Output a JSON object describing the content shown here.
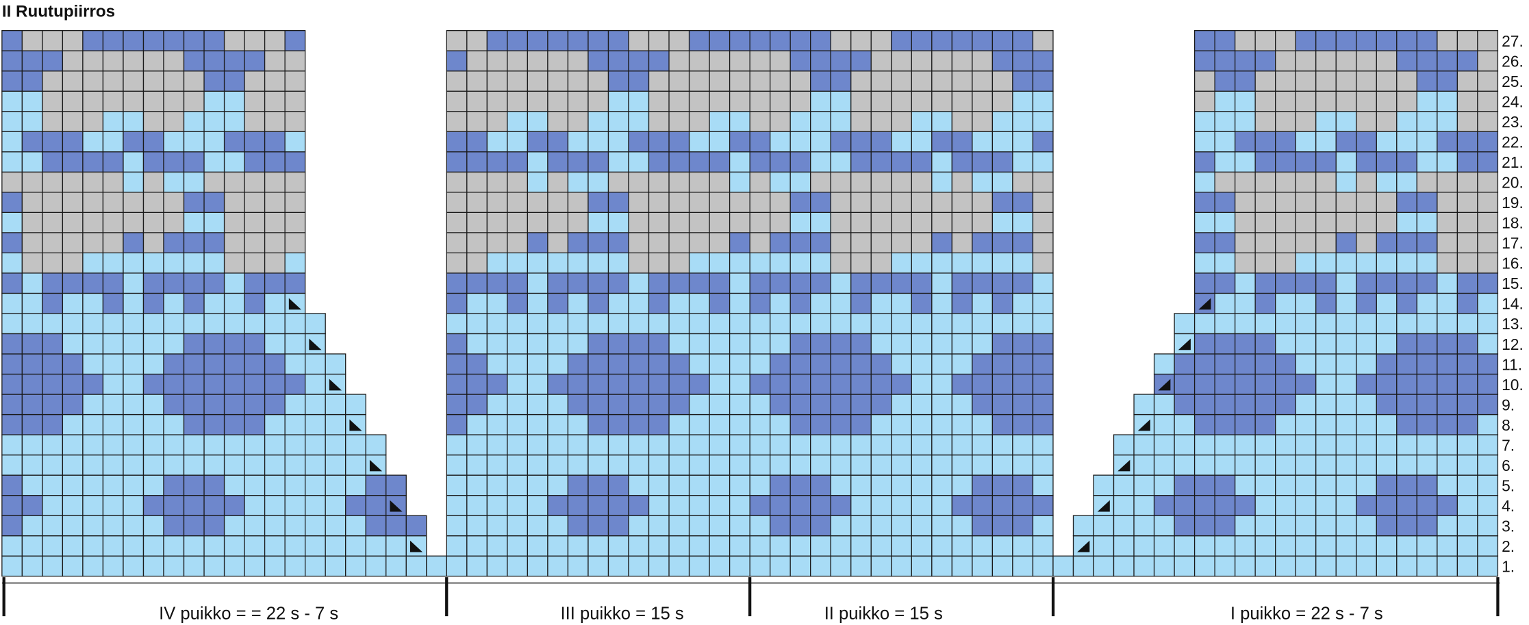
{
  "title": "II Ruutupiirros",
  "row_labels": [
    "1.",
    "2.",
    "3.",
    "4.",
    "5.",
    "6.",
    "7.",
    "8.",
    "9.",
    "10.",
    "11.",
    "12.",
    "13.",
    "14.",
    "15.",
    "16.",
    "17.",
    "18.",
    "19.",
    "20.",
    "21.",
    "22.",
    "23.",
    "24.",
    "25.",
    "26.",
    "27."
  ],
  "sections": [
    "IV puikko = = 22 s - 7 s",
    "III puikko = 15 s",
    "II puikko = 15 s",
    "I puikko = 22 s - 7 s"
  ]
}
